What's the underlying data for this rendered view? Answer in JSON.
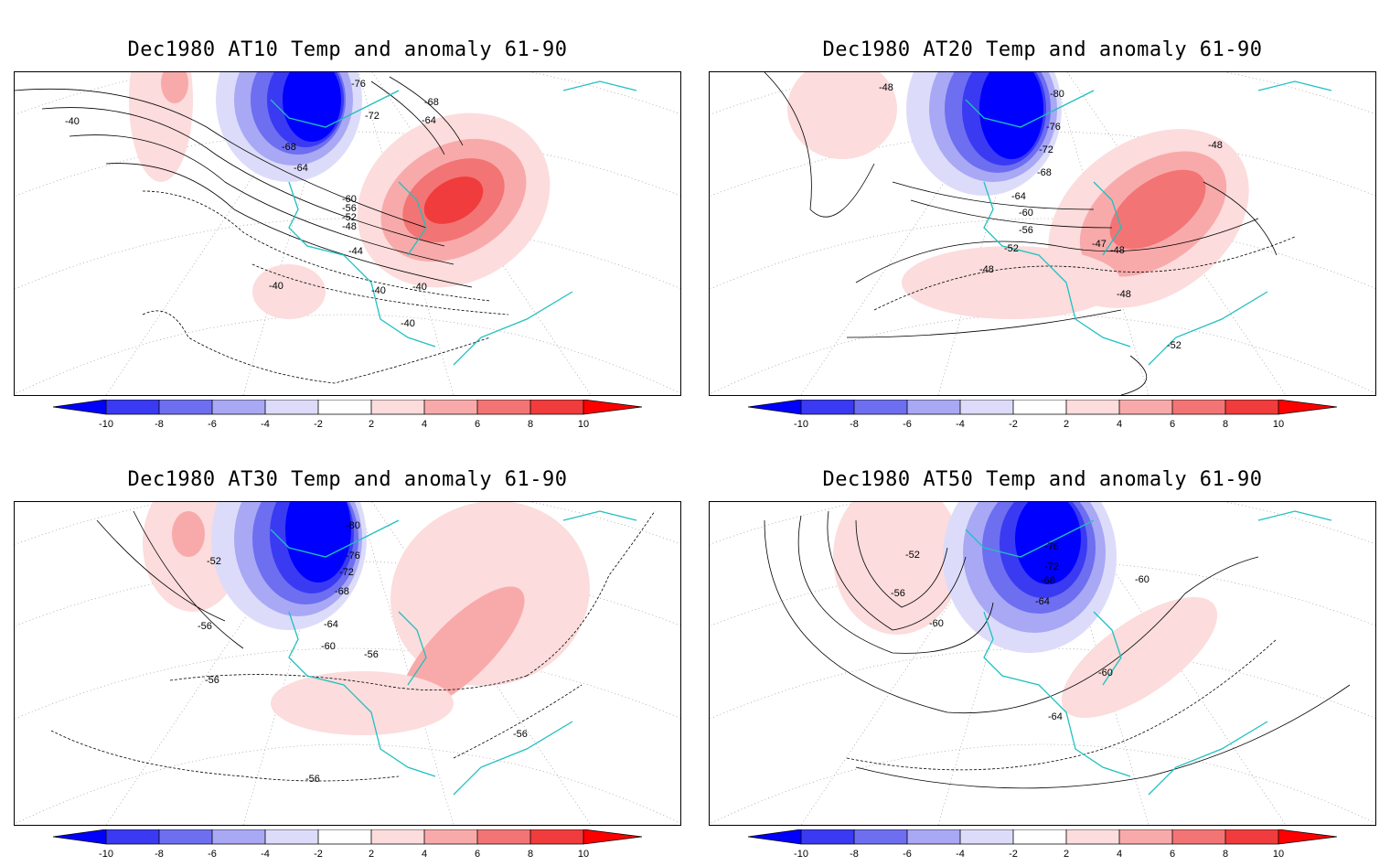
{
  "colors": {
    "negative": [
      "#0000ff",
      "#3a3af2",
      "#6e6ef0",
      "#a8a8f5",
      "#dcdcfa"
    ],
    "positive": [
      "#fcdcdc",
      "#f8aaaa",
      "#f37474",
      "#f03c3c",
      "#ff0000"
    ],
    "coast": "#20c0c0",
    "contour": "#000000"
  },
  "colorbar": {
    "ticks": [
      "-10",
      "-8",
      "-6",
      "-4",
      "-2",
      "2",
      "4",
      "6",
      "8",
      "10"
    ]
  },
  "panels": [
    {
      "title": "Dec1980 AT10 Temp and anomaly 61-90",
      "contour_labels": [
        "-76",
        "-72",
        "-68",
        "-64",
        "-68",
        "-64",
        "-60",
        "-56",
        "-52",
        "-48",
        "-44",
        "-40",
        "-40",
        "-40",
        "-40",
        "-40"
      ]
    },
    {
      "title": "Dec1980 AT20 Temp and anomaly 61-90",
      "contour_labels": [
        "-48",
        "-80",
        "-76",
        "-72",
        "-68",
        "-64",
        "-60",
        "-56",
        "-52",
        "-48",
        "-48",
        "-47",
        "-48",
        "-52",
        "-48"
      ]
    },
    {
      "title": "Dec1980 AT30 Temp and anomaly 61-90",
      "contour_labels": [
        "-80",
        "-76",
        "-72",
        "-68",
        "-64",
        "-60",
        "-56",
        "-52",
        "-56",
        "-56",
        "-56",
        "-56"
      ]
    },
    {
      "title": "Dec1980 AT50 Temp and anomaly 61-90",
      "contour_labels": [
        "-76",
        "-72",
        "-68",
        "-64",
        "-52",
        "-56",
        "-60",
        "-60",
        "-60",
        "-64"
      ]
    }
  ]
}
